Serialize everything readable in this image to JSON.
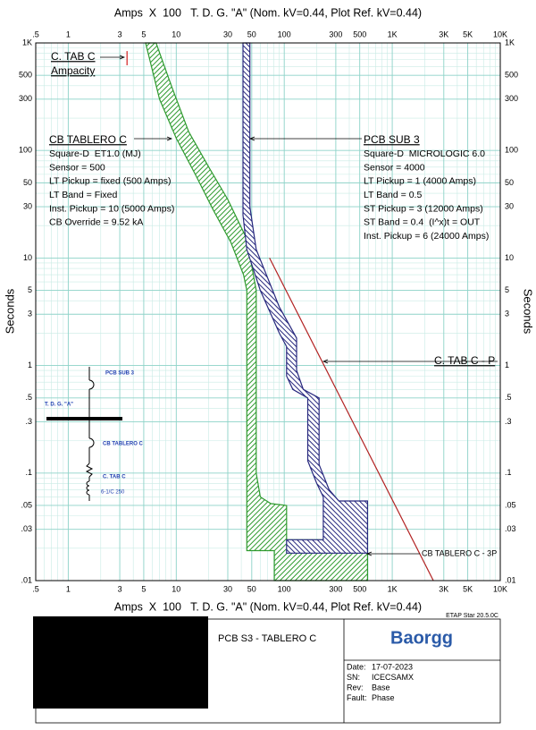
{
  "chart_data": {
    "type": "line",
    "title": "Amps  X  100   T. D. G. \"A\" (Nom. kV=0.44, Plot Ref. kV=0.44)",
    "ylabel": "Seconds",
    "log_x": true,
    "log_y": true,
    "grid": true,
    "xlim": [
      0.5,
      10000
    ],
    "xticks": [
      {
        "value": 0.5,
        "label": ".5"
      },
      1,
      3,
      5,
      10,
      30,
      50,
      100,
      300,
      500,
      {
        "value": 1000,
        "label": "1K"
      },
      {
        "value": 3000,
        "label": "3K"
      },
      {
        "value": 5000,
        "label": "5K"
      },
      {
        "value": 10000,
        "label": "10K"
      }
    ],
    "ylim": [
      0.01,
      1000
    ],
    "yticks": [
      {
        "value": 0.01,
        "label": ".01"
      },
      {
        "value": 0.03,
        "label": ".03"
      },
      {
        "value": 0.05,
        "label": ".05"
      },
      {
        "value": 0.1,
        "label": ".1"
      },
      {
        "value": 0.3,
        "label": ".3"
      },
      {
        "value": 0.5,
        "label": ".5"
      },
      1,
      3,
      5,
      10,
      30,
      50,
      100,
      300,
      500,
      {
        "value": 1000,
        "label": "1K"
      }
    ],
    "series": [
      {
        "name": "CB TABLERO C",
        "style": "hatched",
        "color": "#2e9a2e",
        "details": [
          "Square-D  ET1.0 (MJ)",
          "Sensor = 500",
          "LT Pickup = fixed (500 Amps)",
          "LT Band = Fixed",
          "Inst. Pickup = 10 (5000 Amps)",
          "CB Override = 9.52 kA"
        ],
        "x": [
          5.2,
          6.5,
          9,
          13,
          20,
          30,
          45,
          55,
          55,
          60,
          75,
          105,
          105,
          590,
          590,
          81,
          81,
          45,
          45,
          42,
          32,
          22,
          15,
          10,
          7
        ],
        "values": [
          1000,
          1000,
          400,
          150,
          70,
          35,
          15,
          5,
          0.1,
          0.06,
          0.052,
          0.05,
          0.024,
          0.024,
          0.01,
          0.01,
          0.019,
          0.019,
          5,
          7,
          14,
          28,
          60,
          130,
          300
        ]
      },
      {
        "name": "PCB SUB 3",
        "style": "hatched",
        "color": "#27287e",
        "details": [
          "Square-D  MICROLOGIC 6.0",
          "Sensor = 4000",
          "LT Pickup = 1 (4000 Amps)",
          "LT Band = 0.5",
          "ST Pickup = 3 (12000 Amps)",
          "ST Band = 0.4  (I^x)t = OUT",
          "Inst. Pickup = 6 (24000 Amps)"
        ],
        "x": [
          41.5,
          48,
          48,
          55,
          90,
          130,
          130,
          150,
          210,
          210,
          260,
          320,
          590,
          590,
          105,
          105,
          230,
          230,
          200,
          165,
          165,
          120,
          105,
          105,
          90,
          60,
          45,
          41.5
        ],
        "values": [
          1000,
          1000,
          30,
          12,
          3.5,
          1.8,
          0.9,
          0.6,
          0.5,
          0.12,
          0.07,
          0.055,
          0.055,
          0.018,
          0.018,
          0.024,
          0.024,
          0.06,
          0.08,
          0.13,
          0.5,
          0.6,
          0.8,
          1.5,
          2,
          5,
          12,
          25
        ]
      },
      {
        "name": "C. TAB C - P",
        "style": "line",
        "color": "#b22222",
        "x": [
          73,
          2400
        ],
        "values": [
          10,
          0.01
        ]
      },
      {
        "name": "C. TAB C",
        "style": "line",
        "color": "#d42020",
        "details": [
          "Ampacity"
        ],
        "x": [
          3.5,
          3.5
        ],
        "values": [
          840,
          620
        ]
      }
    ],
    "annotations": [
      "CB TABLERO C - 3P"
    ]
  },
  "one_line": {
    "labels": [
      "PCB SUB 3",
      "T. D. G. \"A\"",
      "CB TABLERO C",
      "C. TAB C",
      "6-1/C 250"
    ]
  },
  "title_block": {
    "software": "ETAP Star 20.5.0C",
    "project": "PCB S3 - TABLERO C",
    "logo": "Baorgg",
    "fields": [
      [
        "Date:",
        "17-07-2023"
      ],
      [
        "SN:",
        "ICECSAMX"
      ],
      [
        "Rev:",
        "Base"
      ],
      [
        "Fault:",
        "Phase"
      ]
    ]
  }
}
